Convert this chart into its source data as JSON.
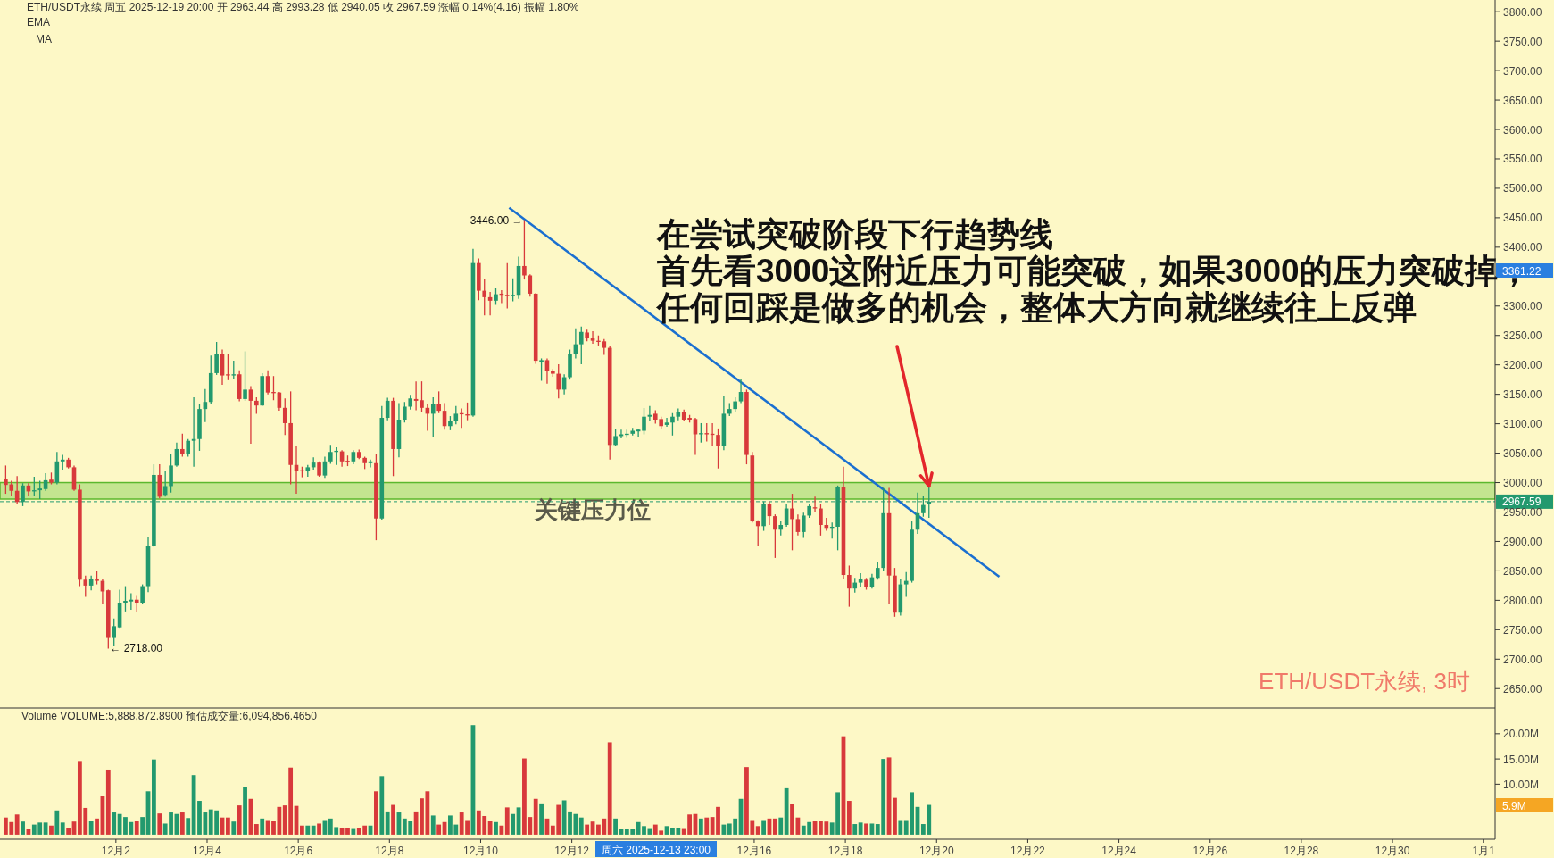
{
  "chart_data": [
    {
      "type": "candlestick",
      "title": "ETH/USDT永续  周五 2025-12-19 20:00  开 2963.44  高 2993.28  低 2940.05  收 2967.59  涨幅 0.14%(4.16)  振幅 1.80%",
      "x": [
        "2025-11-29T14:00",
        "2025-11-29T17:00",
        "2025-11-29T20:00",
        "2025-11-29T23:00",
        "2025-11-30T02:00",
        "2025-11-30T05:00",
        "2025-11-30T08:00",
        "2025-11-30T11:00",
        "2025-11-30T14:00",
        "2025-11-30T17:00",
        "2025-11-30T20:00",
        "2025-11-30T23:00",
        "2025-12-01T02:00",
        "2025-12-01T05:00",
        "2025-12-01T08:00",
        "2025-12-01T11:00",
        "2025-12-01T14:00",
        "2025-12-01T17:00",
        "2025-12-01T20:00",
        "2025-12-01T23:00",
        "2025-12-02T02:00",
        "2025-12-02T05:00",
        "2025-12-02T08:00",
        "2025-12-02T11:00",
        "2025-12-02T14:00",
        "2025-12-02T17:00",
        "2025-12-02T20:00",
        "2025-12-02T23:00",
        "2025-12-03T02:00",
        "2025-12-03T05:00",
        "2025-12-03T08:00",
        "2025-12-03T11:00",
        "2025-12-03T14:00",
        "2025-12-03T17:00",
        "2025-12-03T20:00",
        "2025-12-03T23:00",
        "2025-12-04T02:00",
        "2025-12-04T05:00",
        "2025-12-04T08:00",
        "2025-12-04T11:00",
        "2025-12-04T14:00",
        "2025-12-04T17:00",
        "2025-12-04T20:00",
        "2025-12-04T23:00",
        "2025-12-05T02:00",
        "2025-12-05T05:00",
        "2025-12-05T08:00",
        "2025-12-05T11:00",
        "2025-12-05T14:00",
        "2025-12-05T17:00",
        "2025-12-05T20:00",
        "2025-12-05T23:00",
        "2025-12-06T02:00",
        "2025-12-06T05:00",
        "2025-12-06T08:00",
        "2025-12-06T11:00",
        "2025-12-06T14:00",
        "2025-12-06T17:00",
        "2025-12-06T20:00",
        "2025-12-06T23:00",
        "2025-12-07T02:00",
        "2025-12-07T05:00",
        "2025-12-07T08:00",
        "2025-12-07T11:00",
        "2025-12-07T14:00",
        "2025-12-07T17:00",
        "2025-12-07T20:00",
        "2025-12-07T23:00",
        "2025-12-08T02:00",
        "2025-12-08T05:00",
        "2025-12-08T08:00",
        "2025-12-08T11:00",
        "2025-12-08T14:00",
        "2025-12-08T17:00",
        "2025-12-08T20:00",
        "2025-12-08T23:00",
        "2025-12-09T02:00",
        "2025-12-09T05:00",
        "2025-12-09T08:00",
        "2025-12-09T11:00",
        "2025-12-09T14:00",
        "2025-12-09T17:00",
        "2025-12-09T20:00",
        "2025-12-09T23:00",
        "2025-12-10T02:00",
        "2025-12-10T05:00",
        "2025-12-10T08:00",
        "2025-12-10T11:00",
        "2025-12-10T14:00",
        "2025-12-10T17:00",
        "2025-12-10T20:00",
        "2025-12-10T23:00",
        "2025-12-11T02:00",
        "2025-12-11T05:00",
        "2025-12-11T08:00",
        "2025-12-11T11:00",
        "2025-12-11T14:00",
        "2025-12-11T17:00",
        "2025-12-11T20:00",
        "2025-12-11T23:00",
        "2025-12-12T02:00",
        "2025-12-12T05:00",
        "2025-12-12T08:00",
        "2025-12-12T11:00",
        "2025-12-12T14:00",
        "2025-12-12T17:00",
        "2025-12-12T20:00",
        "2025-12-12T23:00",
        "2025-12-13T02:00",
        "2025-12-13T05:00",
        "2025-12-13T08:00",
        "2025-12-13T11:00",
        "2025-12-13T14:00",
        "2025-12-13T17:00",
        "2025-12-13T20:00",
        "2025-12-13T23:00",
        "2025-12-14T02:00",
        "2025-12-14T05:00",
        "2025-12-14T08:00",
        "2025-12-14T11:00",
        "2025-12-14T14:00",
        "2025-12-14T17:00",
        "2025-12-14T20:00",
        "2025-12-14T23:00",
        "2025-12-15T02:00",
        "2025-12-15T05:00",
        "2025-12-15T08:00",
        "2025-12-15T11:00",
        "2025-12-15T14:00",
        "2025-12-15T17:00",
        "2025-12-15T20:00",
        "2025-12-15T23:00",
        "2025-12-16T02:00",
        "2025-12-16T05:00",
        "2025-12-16T08:00",
        "2025-12-16T11:00",
        "2025-12-16T14:00",
        "2025-12-16T17:00",
        "2025-12-16T20:00",
        "2025-12-16T23:00",
        "2025-12-17T02:00",
        "2025-12-17T05:00",
        "2025-12-17T08:00",
        "2025-12-17T11:00",
        "2025-12-17T14:00",
        "2025-12-17T17:00",
        "2025-12-17T20:00",
        "2025-12-17T23:00",
        "2025-12-18T02:00",
        "2025-12-18T05:00",
        "2025-12-18T08:00",
        "2025-12-18T11:00",
        "2025-12-18T14:00",
        "2025-12-18T17:00",
        "2025-12-18T20:00",
        "2025-12-18T23:00",
        "2025-12-19T02:00",
        "2025-12-19T05:00",
        "2025-12-19T08:00",
        "2025-12-19T11:00",
        "2025-12-19T14:00",
        "2025-12-19T17:00",
        "2025-12-19T20:00"
      ],
      "ohlc": [
        [
          3006,
          3029,
          2981,
          2996
        ],
        [
          2997,
          3003,
          2978,
          2986
        ],
        [
          2986,
          3011,
          2963,
          2967
        ],
        [
          2967,
          2999,
          2960,
          2995
        ],
        [
          2995,
          2999,
          2978,
          2985
        ],
        [
          2985,
          3010,
          2978,
          2987
        ],
        [
          2987,
          3003,
          2972,
          2990
        ],
        [
          2989,
          3016,
          2986,
          3004
        ],
        [
          3005,
          3017,
          2997,
          3000
        ],
        [
          3000,
          3052,
          2997,
          3036
        ],
        [
          3036,
          3047,
          3022,
          3039
        ],
        [
          3039,
          3042,
          3024,
          3026
        ],
        [
          3026,
          3029,
          2986,
          2988
        ],
        [
          2988,
          2997,
          2824,
          2835
        ],
        [
          2835,
          2842,
          2806,
          2825
        ],
        [
          2825,
          2842,
          2817,
          2837
        ],
        [
          2837,
          2850,
          2827,
          2833
        ],
        [
          2833,
          2837,
          2794,
          2815
        ],
        [
          2817,
          2818,
          2718,
          2736
        ],
        [
          2736,
          2769,
          2723,
          2756
        ],
        [
          2754,
          2818,
          2753,
          2796
        ],
        [
          2796,
          2824,
          2781,
          2799
        ],
        [
          2798,
          2812,
          2784,
          2801
        ],
        [
          2801,
          2809,
          2780,
          2796
        ],
        [
          2796,
          2827,
          2794,
          2824
        ],
        [
          2824,
          2908,
          2814,
          2892
        ],
        [
          2892,
          3031,
          2891,
          3013
        ],
        [
          3013,
          3031,
          2973,
          2976
        ],
        [
          2979,
          3019,
          2976,
          2994
        ],
        [
          2994,
          3048,
          2983,
          3029
        ],
        [
          3029,
          3068,
          3027,
          3057
        ],
        [
          3057,
          3083,
          3044,
          3048
        ],
        [
          3048,
          3074,
          3044,
          3071
        ],
        [
          3071,
          3145,
          3027,
          3074
        ],
        [
          3074,
          3133,
          3054,
          3125
        ],
        [
          3125,
          3159,
          3103,
          3137
        ],
        [
          3137,
          3216,
          3133,
          3186
        ],
        [
          3186,
          3239,
          3183,
          3219
        ],
        [
          3219,
          3226,
          3166,
          3182
        ],
        [
          3184,
          3219,
          3174,
          3182
        ],
        [
          3182,
          3207,
          3176,
          3184
        ],
        [
          3184,
          3191,
          3138,
          3142
        ],
        [
          3142,
          3223,
          3139,
          3158
        ],
        [
          3158,
          3164,
          3066,
          3139
        ],
        [
          3139,
          3145,
          3117,
          3131
        ],
        [
          3131,
          3186,
          3130,
          3181
        ],
        [
          3181,
          3191,
          3150,
          3153
        ],
        [
          3154,
          3181,
          3140,
          3152
        ],
        [
          3153,
          3154,
          3122,
          3127
        ],
        [
          3127,
          3143,
          3081,
          3101
        ],
        [
          3101,
          3155,
          2997,
          3030
        ],
        [
          3030,
          3062,
          2981,
          3019
        ],
        [
          3021,
          3027,
          3009,
          3019
        ],
        [
          3019,
          3030,
          3010,
          3026
        ],
        [
          3026,
          3043,
          3022,
          3034
        ],
        [
          3034,
          3036,
          3010,
          3012
        ],
        [
          3012,
          3044,
          3008,
          3036
        ],
        [
          3036,
          3064,
          3032,
          3052
        ],
        [
          3052,
          3060,
          3030,
          3054
        ],
        [
          3053,
          3055,
          3027,
          3036
        ],
        [
          3037,
          3046,
          3028,
          3036
        ],
        [
          3036,
          3055,
          3031,
          3052
        ],
        [
          3052,
          3056,
          3040,
          3042
        ],
        [
          3042,
          3044,
          3023,
          3033
        ],
        [
          3033,
          3039,
          3026,
          3036
        ],
        [
          3033,
          3048,
          2902,
          2939
        ],
        [
          2939,
          3130,
          2937,
          3110
        ],
        [
          3110,
          3144,
          3106,
          3139
        ],
        [
          3139,
          3144,
          3011,
          3057
        ],
        [
          3057,
          3135,
          3043,
          3107
        ],
        [
          3107,
          3137,
          3102,
          3129
        ],
        [
          3129,
          3149,
          3124,
          3143
        ],
        [
          3142,
          3172,
          3123,
          3139
        ],
        [
          3140,
          3172,
          3120,
          3127
        ],
        [
          3127,
          3134,
          3088,
          3117
        ],
        [
          3117,
          3145,
          3078,
          3133
        ],
        [
          3133,
          3155,
          3118,
          3122
        ],
        [
          3122,
          3135,
          3090,
          3096
        ],
        [
          3096,
          3113,
          3089,
          3105
        ],
        [
          3105,
          3130,
          3099,
          3117
        ],
        [
          3118,
          3126,
          3093,
          3116
        ],
        [
          3116,
          3136,
          3106,
          3114
        ],
        [
          3114,
          3397,
          3112,
          3373
        ],
        [
          3373,
          3381,
          3310,
          3326
        ],
        [
          3326,
          3345,
          3284,
          3315
        ],
        [
          3315,
          3324,
          3284,
          3309
        ],
        [
          3309,
          3330,
          3302,
          3320
        ],
        [
          3321,
          3327,
          3305,
          3319
        ],
        [
          3319,
          3373,
          3296,
          3317
        ],
        [
          3317,
          3347,
          3308,
          3319
        ],
        [
          3319,
          3384,
          3312,
          3368
        ],
        [
          3368,
          3446,
          3345,
          3352
        ],
        [
          3352,
          3354,
          3316,
          3321
        ],
        [
          3321,
          3322,
          3202,
          3207
        ],
        [
          3205,
          3211,
          3173,
          3208
        ],
        [
          3208,
          3211,
          3168,
          3190
        ],
        [
          3190,
          3193,
          3180,
          3185
        ],
        [
          3185,
          3201,
          3143,
          3158
        ],
        [
          3158,
          3184,
          3150,
          3179
        ],
        [
          3179,
          3226,
          3175,
          3219
        ],
        [
          3219,
          3262,
          3211,
          3235
        ],
        [
          3235,
          3265,
          3201,
          3256
        ],
        [
          3255,
          3260,
          3240,
          3245
        ],
        [
          3245,
          3257,
          3236,
          3241
        ],
        [
          3241,
          3250,
          3233,
          3239
        ],
        [
          3240,
          3244,
          3217,
          3229
        ],
        [
          3229,
          3232,
          3039,
          3064
        ],
        [
          3064,
          3091,
          3062,
          3079
        ],
        [
          3079,
          3090,
          3075,
          3082
        ],
        [
          3081,
          3090,
          3076,
          3083
        ],
        [
          3083,
          3093,
          3080,
          3088
        ],
        [
          3087,
          3092,
          3078,
          3090
        ],
        [
          3088,
          3127,
          3082,
          3112
        ],
        [
          3112,
          3130,
          3105,
          3115
        ],
        [
          3117,
          3123,
          3100,
          3107
        ],
        [
          3108,
          3112,
          3092,
          3096
        ],
        [
          3098,
          3110,
          3095,
          3102
        ],
        [
          3102,
          3118,
          3080,
          3112
        ],
        [
          3112,
          3126,
          3106,
          3120
        ],
        [
          3120,
          3124,
          3104,
          3107
        ],
        [
          3110,
          3115,
          3102,
          3107
        ],
        [
          3108,
          3110,
          3047,
          3082
        ],
        [
          3082,
          3101,
          3068,
          3084
        ],
        [
          3084,
          3101,
          3070,
          3082
        ],
        [
          3083,
          3101,
          3063,
          3081
        ],
        [
          3081,
          3092,
          3024,
          3062
        ],
        [
          3062,
          3147,
          3055,
          3117
        ],
        [
          3117,
          3135,
          3113,
          3125
        ],
        [
          3125,
          3145,
          3119,
          3138
        ],
        [
          3138,
          3176,
          3135,
          3154
        ],
        [
          3154,
          3158,
          3031,
          3047
        ],
        [
          3046,
          3052,
          2932,
          2934
        ],
        [
          2934,
          2936,
          2892,
          2926
        ],
        [
          2926,
          2968,
          2918,
          2963
        ],
        [
          2963,
          2968,
          2928,
          2943
        ],
        [
          2943,
          2946,
          2872,
          2920
        ],
        [
          2920,
          2935,
          2910,
          2928
        ],
        [
          2928,
          2964,
          2925,
          2956
        ],
        [
          2956,
          2981,
          2885,
          2938
        ],
        [
          2938,
          2946,
          2910,
          2916
        ],
        [
          2916,
          2949,
          2906,
          2944
        ],
        [
          2944,
          2964,
          2940,
          2960
        ],
        [
          2958,
          2976,
          2950,
          2956
        ],
        [
          2956,
          2963,
          2910,
          2928
        ],
        [
          2928,
          2940,
          2918,
          2923
        ],
        [
          2923,
          2932,
          2905,
          2925
        ],
        [
          2925,
          2995,
          2885,
          2992
        ],
        [
          2992,
          3027,
          2837,
          2843
        ],
        [
          2843,
          2859,
          2789,
          2820
        ],
        [
          2820,
          2838,
          2813,
          2830
        ],
        [
          2830,
          2846,
          2823,
          2837
        ],
        [
          2835,
          2838,
          2818,
          2822
        ],
        [
          2822,
          2845,
          2820,
          2839
        ],
        [
          2838,
          2865,
          2835,
          2855
        ],
        [
          2855,
          2991,
          2850,
          2948
        ],
        [
          2948,
          2991,
          2794,
          2842
        ],
        [
          2842,
          2855,
          2772,
          2779
        ],
        [
          2779,
          2837,
          2774,
          2827
        ],
        [
          2827,
          2848,
          2806,
          2833
        ],
        [
          2833,
          2934,
          2830,
          2920
        ],
        [
          2920,
          2983,
          2913,
          2948
        ],
        [
          2948,
          2978,
          2942,
          2962
        ],
        [
          2963.44,
          2993.28,
          2940.05,
          2967.59
        ]
      ],
      "colors": [
        "#d8393b",
        "#d8393b",
        "#d8393b",
        "#22996e",
        "#d8393b",
        "#22996e",
        "#22996e",
        "#22996e",
        "#d8393b",
        "#22996e",
        "#22996e",
        "#d8393b",
        "#d8393b",
        "#d8393b",
        "#d8393b",
        "#22996e",
        "#d8393b",
        "#d8393b",
        "#d8393b",
        "#22996e",
        "#22996e",
        "#22996e",
        "#22996e",
        "#d8393b",
        "#22996e",
        "#22996e",
        "#22996e",
        "#d8393b",
        "#22996e",
        "#22996e",
        "#22996e",
        "#d8393b",
        "#22996e",
        "#22996e",
        "#22996e",
        "#22996e",
        "#22996e",
        "#22996e",
        "#d8393b",
        "#d8393b",
        "#22996e",
        "#d8393b",
        "#22996e",
        "#d8393b",
        "#d8393b",
        "#22996e",
        "#d8393b",
        "#d8393b",
        "#d8393b",
        "#d8393b",
        "#d8393b",
        "#d8393b",
        "#d8393b",
        "#22996e",
        "#22996e",
        "#d8393b",
        "#22996e",
        "#22996e",
        "#22996e",
        "#d8393b",
        "#d8393b",
        "#22996e",
        "#d8393b",
        "#d8393b",
        "#22996e",
        "#d8393b",
        "#22996e",
        "#22996e",
        "#d8393b",
        "#22996e",
        "#22996e",
        "#22996e",
        "#d8393b",
        "#d8393b",
        "#d8393b",
        "#22996e",
        "#d8393b",
        "#d8393b",
        "#22996e",
        "#22996e",
        "#d8393b",
        "#d8393b",
        "#22996e",
        "#d8393b",
        "#d8393b",
        "#d8393b",
        "#22996e",
        "#d8393b",
        "#d8393b",
        "#22996e",
        "#22996e",
        "#d8393b",
        "#d8393b",
        "#d8393b",
        "#22996e",
        "#d8393b",
        "#d8393b",
        "#d8393b",
        "#22996e",
        "#22996e",
        "#22996e",
        "#22996e",
        "#d8393b",
        "#d8393b",
        "#d8393b",
        "#d8393b",
        "#d8393b",
        "#22996e",
        "#22996e",
        "#22996e",
        "#22996e",
        "#22996e",
        "#22996e",
        "#22996e",
        "#d8393b",
        "#d8393b",
        "#22996e",
        "#22996e",
        "#22996e",
        "#d8393b",
        "#d8393b",
        "#d8393b",
        "#22996e",
        "#d8393b",
        "#d8393b",
        "#d8393b",
        "#22996e",
        "#22996e",
        "#22996e",
        "#22996e",
        "#d8393b",
        "#d8393b",
        "#d8393b",
        "#22996e",
        "#d8393b",
        "#d8393b",
        "#22996e",
        "#22996e",
        "#d8393b",
        "#d8393b",
        "#22996e",
        "#22996e",
        "#d8393b",
        "#d8393b",
        "#d8393b",
        "#22996e",
        "#22996e",
        "#d8393b",
        "#d8393b",
        "#22996e",
        "#22996e",
        "#d8393b",
        "#22996e",
        "#22996e",
        "#22996e",
        "#d8393b",
        "#d8393b",
        "#22996e",
        "#22996e",
        "#22996e",
        "#22996e",
        "#22996e",
        "#22996e"
      ],
      "xlim": [
        "2025-11-29T11:00",
        "2026-01-01T06:00"
      ],
      "ylim": [
        2617,
        3820
      ],
      "yticks": [
        {
          "value": 2650,
          "label": "2650.00"
        },
        {
          "value": 2700,
          "label": "2700.00"
        },
        {
          "value": 2750,
          "label": "2750.00"
        },
        {
          "value": 2800,
          "label": "2800.00"
        },
        {
          "value": 2850,
          "label": "2850.00"
        },
        {
          "value": 2900,
          "label": "2900.00"
        },
        {
          "value": 2950,
          "label": "2950.00"
        },
        {
          "value": 3000,
          "label": "3000.00"
        },
        {
          "value": 3050,
          "label": "3050.00"
        },
        {
          "value": 3100,
          "label": "3100.00"
        },
        {
          "value": 3150,
          "label": "3150.00"
        },
        {
          "value": 3200,
          "label": "3200.00"
        },
        {
          "value": 3250,
          "label": "3250.00"
        },
        {
          "value": 3300,
          "label": "3300.00"
        },
        {
          "value": 3350,
          "label": null
        },
        {
          "value": 3400,
          "label": "3400.00"
        },
        {
          "value": 3450,
          "label": "3450.00"
        },
        {
          "value": 3500,
          "label": "3500.00"
        },
        {
          "value": 3550,
          "label": "3550.00"
        },
        {
          "value": 3600,
          "label": "3600.00"
        },
        {
          "value": 3650,
          "label": "3650.00"
        },
        {
          "value": 3700,
          "label": "3700.00"
        },
        {
          "value": 3750,
          "label": "3750.00"
        },
        {
          "value": 3800,
          "label": "3800.00"
        }
      ],
      "tick_labels": "y",
      "series": [
        {
          "type": "line",
          "color": "#1a6fd0",
          "x": [
            "2025-12-10T15:00",
            "2025-12-21T09:00"
          ],
          "values": [
            3467,
            2840
          ]
        }
      ],
      "ref_lines": [
        {
          "axis": "y",
          "value": 2967.59,
          "label": "2967.59",
          "color": "#22996e",
          "line_style": "dashed"
        }
      ],
      "bands": [
        {
          "axis": "y",
          "from": 2972,
          "to": 3000,
          "label": "关键压力位",
          "color": "#9ed86c"
        }
      ],
      "annotations": [
        {
          "text": "3446.00 →",
          "x": "2025-12-10T23:00",
          "y": 3446
        },
        {
          "text": "← 2718.00",
          "x": "2025-12-01T20:00",
          "y": 2718
        },
        "3361.22",
        "在尝试突破阶段下行趋势线",
        "首先看3000这附近压力可能突破，如果3000的压力突破掉，",
        {
          "text": "任何回踩是做多的机会，整体大方向就继续往上反弹",
          "x": "2025-12-19T20:00",
          "y": 2994
        },
        "ETH/USDT永续, 3时",
        "EMA",
        "MA"
      ]
    },
    {
      "type": "bar",
      "title": "Volume  VOLUME:5,888,872.8900  预估成交量:6,094,856.4650",
      "x": [
        "2025-11-29T14:00",
        "2025-11-29T17:00",
        "2025-11-29T20:00",
        "2025-11-29T23:00",
        "2025-11-30T02:00",
        "2025-11-30T05:00",
        "2025-11-30T08:00",
        "2025-11-30T11:00",
        "2025-11-30T14:00",
        "2025-11-30T17:00",
        "2025-11-30T20:00",
        "2025-11-30T23:00",
        "2025-12-01T02:00",
        "2025-12-01T05:00",
        "2025-12-01T08:00",
        "2025-12-01T11:00",
        "2025-12-01T14:00",
        "2025-12-01T17:00",
        "2025-12-01T20:00",
        "2025-12-01T23:00",
        "2025-12-02T02:00",
        "2025-12-02T05:00",
        "2025-12-02T08:00",
        "2025-12-02T11:00",
        "2025-12-02T14:00",
        "2025-12-02T17:00",
        "2025-12-02T20:00",
        "2025-12-02T23:00",
        "2025-12-03T02:00",
        "2025-12-03T05:00",
        "2025-12-03T08:00",
        "2025-12-03T11:00",
        "2025-12-03T14:00",
        "2025-12-03T17:00",
        "2025-12-03T20:00",
        "2025-12-03T23:00",
        "2025-12-04T02:00",
        "2025-12-04T05:00",
        "2025-12-04T08:00",
        "2025-12-04T11:00",
        "2025-12-04T14:00",
        "2025-12-04T17:00",
        "2025-12-04T20:00",
        "2025-12-04T23:00",
        "2025-12-05T02:00",
        "2025-12-05T05:00",
        "2025-12-05T08:00",
        "2025-12-05T11:00",
        "2025-12-05T14:00",
        "2025-12-05T17:00",
        "2025-12-05T20:00",
        "2025-12-05T23:00",
        "2025-12-06T02:00",
        "2025-12-06T05:00",
        "2025-12-06T08:00",
        "2025-12-06T11:00",
        "2025-12-06T14:00",
        "2025-12-06T17:00",
        "2025-12-06T20:00",
        "2025-12-06T23:00",
        "2025-12-07T02:00",
        "2025-12-07T05:00",
        "2025-12-07T08:00",
        "2025-12-07T11:00",
        "2025-12-07T14:00",
        "2025-12-07T17:00",
        "2025-12-07T20:00",
        "2025-12-07T23:00",
        "2025-12-08T02:00",
        "2025-12-08T05:00",
        "2025-12-08T08:00",
        "2025-12-08T11:00",
        "2025-12-08T14:00",
        "2025-12-08T17:00",
        "2025-12-08T20:00",
        "2025-12-08T23:00",
        "2025-12-09T02:00",
        "2025-12-09T05:00",
        "2025-12-09T08:00",
        "2025-12-09T11:00",
        "2025-12-09T14:00",
        "2025-12-09T17:00",
        "2025-12-09T20:00",
        "2025-12-09T23:00",
        "2025-12-10T02:00",
        "2025-12-10T05:00",
        "2025-12-10T08:00",
        "2025-12-10T11:00",
        "2025-12-10T14:00",
        "2025-12-10T17:00",
        "2025-12-10T20:00",
        "2025-12-10T23:00",
        "2025-12-11T02:00",
        "2025-12-11T05:00",
        "2025-12-11T08:00",
        "2025-12-11T11:00",
        "2025-12-11T14:00",
        "2025-12-11T17:00",
        "2025-12-11T20:00",
        "2025-12-11T23:00",
        "2025-12-12T02:00",
        "2025-12-12T05:00",
        "2025-12-12T08:00",
        "2025-12-12T11:00",
        "2025-12-12T14:00",
        "2025-12-12T17:00",
        "2025-12-12T20:00",
        "2025-12-12T23:00",
        "2025-12-13T02:00",
        "2025-12-13T05:00",
        "2025-12-13T08:00",
        "2025-12-13T11:00",
        "2025-12-13T14:00",
        "2025-12-13T17:00",
        "2025-12-13T20:00",
        "2025-12-13T23:00",
        "2025-12-14T02:00",
        "2025-12-14T05:00",
        "2025-12-14T08:00",
        "2025-12-14T11:00",
        "2025-12-14T14:00",
        "2025-12-14T17:00",
        "2025-12-14T20:00",
        "2025-12-14T23:00",
        "2025-12-15T02:00",
        "2025-12-15T05:00",
        "2025-12-15T08:00",
        "2025-12-15T11:00",
        "2025-12-15T14:00",
        "2025-12-15T17:00",
        "2025-12-15T20:00",
        "2025-12-15T23:00",
        "2025-12-16T02:00",
        "2025-12-16T05:00",
        "2025-12-16T08:00",
        "2025-12-16T11:00",
        "2025-12-16T14:00",
        "2025-12-16T17:00",
        "2025-12-16T20:00",
        "2025-12-16T23:00",
        "2025-12-17T02:00",
        "2025-12-17T05:00",
        "2025-12-17T08:00",
        "2025-12-17T11:00",
        "2025-12-17T14:00",
        "2025-12-17T17:00",
        "2025-12-17T20:00",
        "2025-12-17T23:00",
        "2025-12-18T02:00",
        "2025-12-18T05:00",
        "2025-12-18T08:00",
        "2025-12-18T11:00",
        "2025-12-18T14:00",
        "2025-12-18T17:00",
        "2025-12-18T20:00",
        "2025-12-18T23:00",
        "2025-12-19T02:00",
        "2025-12-19T05:00",
        "2025-12-19T08:00",
        "2025-12-19T11:00",
        "2025-12-19T14:00",
        "2025-12-19T17:00",
        "2025-12-19T20:00"
      ],
      "values": [
        3.4,
        2.5,
        4.0,
        2.6,
        1.1,
        2.0,
        2.4,
        2.4,
        1.8,
        4.8,
        2.4,
        1.4,
        2.6,
        14.6,
        5.3,
        2.8,
        3.2,
        7.7,
        12.9,
        4.4,
        4.1,
        3.5,
        2.5,
        2.8,
        3.5,
        8.6,
        14.9,
        4.2,
        2.2,
        4.4,
        4.1,
        4.4,
        3.3,
        11.8,
        6.7,
        4.4,
        5.0,
        4.8,
        3.4,
        3.4,
        2.6,
        5.8,
        9.5,
        7.1,
        2.1,
        3.2,
        2.9,
        2.8,
        5.5,
        5.8,
        13.3,
        5.7,
        1.8,
        1.8,
        1.8,
        2.2,
        2.9,
        3.2,
        1.5,
        1.4,
        1.4,
        1.3,
        1.4,
        1.8,
        1.8,
        8.6,
        11.6,
        4.6,
        5.9,
        4.4,
        3.2,
        2.8,
        4.6,
        7.2,
        8.6,
        3.8,
        2.0,
        2.5,
        3.8,
        2.0,
        4.4,
        2.9,
        21.7,
        4.8,
        3.7,
        2.8,
        2.5,
        1.8,
        5.4,
        4.1,
        5.4,
        15.1,
        3.5,
        7.1,
        6.2,
        3.2,
        1.8,
        5.9,
        6.8,
        4.6,
        4.1,
        3.4,
        2.0,
        2.6,
        2.0,
        3.2,
        18.3,
        3.2,
        1.2,
        1.1,
        1.1,
        2.5,
        1.7,
        1.3,
        2.0,
        0.8,
        1.7,
        1.4,
        1.4,
        1.3,
        4.0,
        4.1,
        3.2,
        3.4,
        3.5,
        5.5,
        2.0,
        2.2,
        3.2,
        7.1,
        13.4,
        2.9,
        1.7,
        2.9,
        3.2,
        3.2,
        3.4,
        9.2,
        6.1,
        3.4,
        1.8,
        2.5,
        2.7,
        2.8,
        2.6,
        2.4,
        8.4,
        19.5,
        6.7,
        2.1,
        2.4,
        2.2,
        2.2,
        2.1,
        15.0,
        15.3,
        7.3,
        2.9,
        2.9,
        8.4,
        5.5,
        2.1,
        5.9
      ],
      "colors": [
        "#d8393b",
        "#d8393b",
        "#d8393b",
        "#22996e",
        "#d8393b",
        "#22996e",
        "#22996e",
        "#22996e",
        "#d8393b",
        "#22996e",
        "#22996e",
        "#d8393b",
        "#d8393b",
        "#d8393b",
        "#d8393b",
        "#22996e",
        "#d8393b",
        "#d8393b",
        "#d8393b",
        "#22996e",
        "#22996e",
        "#22996e",
        "#22996e",
        "#d8393b",
        "#22996e",
        "#22996e",
        "#22996e",
        "#d8393b",
        "#22996e",
        "#22996e",
        "#22996e",
        "#d8393b",
        "#22996e",
        "#22996e",
        "#22996e",
        "#22996e",
        "#22996e",
        "#22996e",
        "#d8393b",
        "#d8393b",
        "#22996e",
        "#d8393b",
        "#22996e",
        "#d8393b",
        "#d8393b",
        "#22996e",
        "#d8393b",
        "#d8393b",
        "#d8393b",
        "#d8393b",
        "#d8393b",
        "#d8393b",
        "#d8393b",
        "#22996e",
        "#22996e",
        "#d8393b",
        "#22996e",
        "#22996e",
        "#22996e",
        "#d8393b",
        "#d8393b",
        "#22996e",
        "#d8393b",
        "#d8393b",
        "#22996e",
        "#d8393b",
        "#22996e",
        "#22996e",
        "#d8393b",
        "#22996e",
        "#22996e",
        "#22996e",
        "#d8393b",
        "#d8393b",
        "#d8393b",
        "#22996e",
        "#d8393b",
        "#d8393b",
        "#22996e",
        "#22996e",
        "#d8393b",
        "#d8393b",
        "#22996e",
        "#d8393b",
        "#d8393b",
        "#d8393b",
        "#22996e",
        "#d8393b",
        "#d8393b",
        "#22996e",
        "#22996e",
        "#d8393b",
        "#d8393b",
        "#d8393b",
        "#22996e",
        "#d8393b",
        "#d8393b",
        "#d8393b",
        "#22996e",
        "#22996e",
        "#22996e",
        "#22996e",
        "#d8393b",
        "#d8393b",
        "#d8393b",
        "#d8393b",
        "#d8393b",
        "#22996e",
        "#22996e",
        "#22996e",
        "#22996e",
        "#22996e",
        "#22996e",
        "#22996e",
        "#d8393b",
        "#d8393b",
        "#22996e",
        "#22996e",
        "#22996e",
        "#d8393b",
        "#d8393b",
        "#d8393b",
        "#22996e",
        "#d8393b",
        "#d8393b",
        "#d8393b",
        "#22996e",
        "#22996e",
        "#22996e",
        "#22996e",
        "#d8393b",
        "#d8393b",
        "#d8393b",
        "#22996e",
        "#d8393b",
        "#d8393b",
        "#22996e",
        "#22996e",
        "#d8393b",
        "#d8393b",
        "#22996e",
        "#22996e",
        "#d8393b",
        "#d8393b",
        "#d8393b",
        "#22996e",
        "#22996e",
        "#d8393b",
        "#d8393b",
        "#22996e",
        "#22996e",
        "#d8393b",
        "#22996e",
        "#22996e",
        "#22996e",
        "#d8393b",
        "#d8393b",
        "#22996e",
        "#22996e",
        "#22996e",
        "#22996e",
        "#22996e",
        "#22996e"
      ],
      "xlim": [
        "2025-11-29T11:00",
        "2026-01-01T06:00"
      ],
      "ylim": [
        -0.9,
        25.1
      ],
      "yticks": [
        {
          "value": 10,
          "label": "10.00M"
        },
        {
          "value": 15,
          "label": "15.00M"
        },
        {
          "value": 20,
          "label": "20.00M"
        }
      ],
      "xticks": [
        {
          "value": "2025-12-02",
          "label": "12月2"
        },
        {
          "value": "2025-12-04",
          "label": "12月4"
        },
        {
          "value": "2025-12-06",
          "label": "12月6"
        },
        {
          "value": "2025-12-08",
          "label": "12月8"
        },
        {
          "value": "2025-12-10",
          "label": "12月10"
        },
        {
          "value": "2025-12-12",
          "label": "12月12"
        },
        {
          "value": "2025-12-16",
          "label": "12月16"
        },
        {
          "value": "2025-12-18",
          "label": "12月18"
        },
        {
          "value": "2025-12-20",
          "label": "12月20"
        },
        {
          "value": "2025-12-22",
          "label": "12月22"
        },
        {
          "value": "2025-12-24",
          "label": "12月24"
        },
        {
          "value": "2025-12-26",
          "label": "12月26"
        },
        {
          "value": "2025-12-28",
          "label": "12月28"
        },
        {
          "value": "2025-12-30",
          "label": "12月30"
        },
        {
          "value": "2026-01-01",
          "label": "1月1"
        }
      ],
      "annotations": [
        "5.9M",
        "周六 2025-12-13 23:00"
      ]
    }
  ]
}
